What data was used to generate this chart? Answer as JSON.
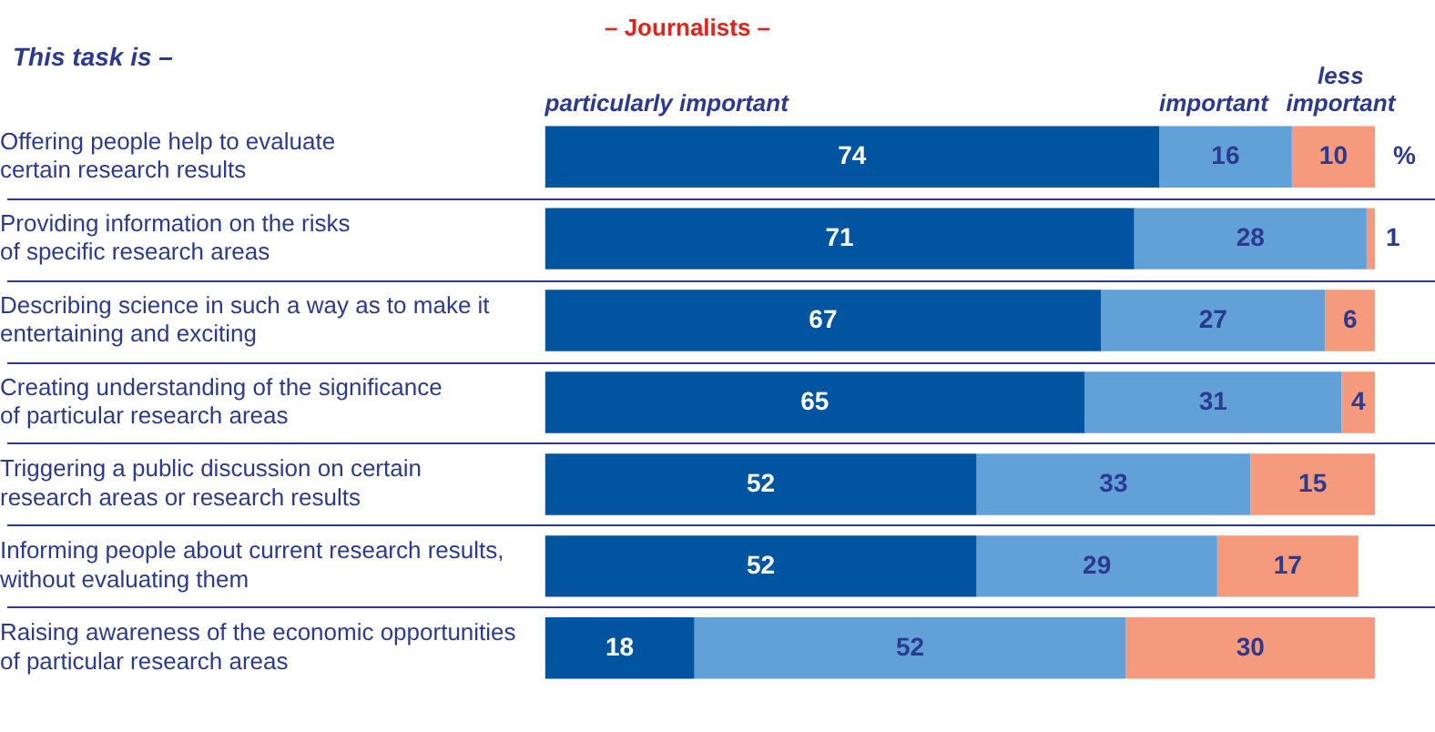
{
  "chart_data": {
    "type": "bar",
    "orientation": "horizontal",
    "stacked": true,
    "title": "– Journalists –",
    "ylabel": "This task is –",
    "categories": [
      "Offering people help to evaluate\ncertain research results",
      "Providing information on the risks\nof specific research areas",
      "Describing science in such a way as to make it\nentertaining and exciting",
      "Creating understanding of the significance\nof particular research areas",
      "Triggering a public discussion on certain\nresearch areas or research results",
      "Informing people about current research results,\nwithout evaluating them",
      "Raising awareness of the economic opportunities\nof particular research areas"
    ],
    "series": [
      {
        "name": "particularly important",
        "color": "#0054a0",
        "values": [
          74,
          71,
          67,
          65,
          52,
          52,
          18
        ]
      },
      {
        "name": "important",
        "color": "#62a0d8",
        "values": [
          16,
          28,
          27,
          31,
          33,
          29,
          52
        ]
      },
      {
        "name": "less important",
        "color": "#f59a7c",
        "values": [
          10,
          1,
          6,
          4,
          15,
          17,
          30
        ]
      }
    ],
    "xlim": [
      0,
      100
    ],
    "tick_labels": "y",
    "grid": "y",
    "legend": "top",
    "data_labels": true,
    "annotations": [
      "%"
    ]
  }
}
